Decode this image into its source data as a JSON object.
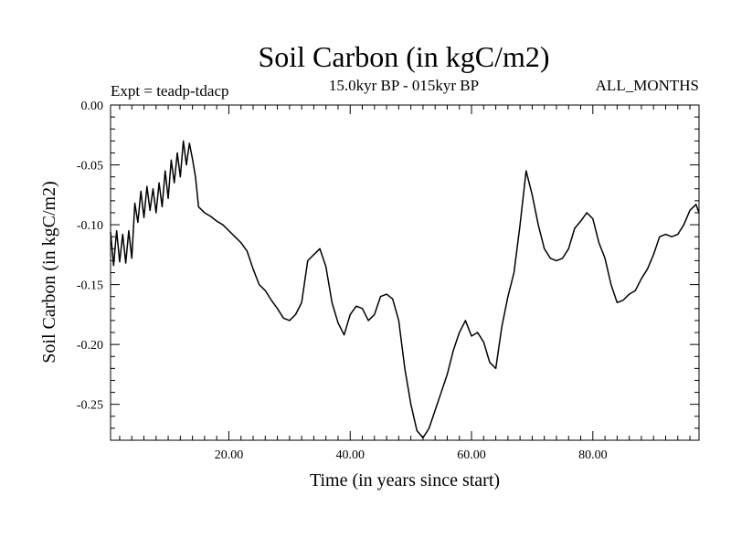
{
  "chart_data": {
    "type": "line",
    "title": "Soil Carbon (in kgC/m2)",
    "subtitle": "15.0kyr BP - 015kyr BP",
    "experiment": "Expt = teadp-tdacp",
    "months": "ALL_MONTHS",
    "xlabel": "Time (in years since start)",
    "ylabel": "Soil Carbon (in kgC/m2)",
    "xlim": [
      0.5,
      97.5
    ],
    "ylim": [
      -0.28,
      0.0
    ],
    "xticks": [
      20,
      40,
      60,
      80
    ],
    "xtick_labels": [
      "20.00",
      "40.00",
      "60.00",
      "80.00"
    ],
    "yticks": [
      0.0,
      -0.05,
      -0.1,
      -0.15,
      -0.2,
      -0.25
    ],
    "ytick_labels": [
      "0.00",
      "-0.05",
      "-0.10",
      "-0.15",
      "-0.20",
      "-0.25"
    ],
    "line_color": "#000000",
    "series": [
      {
        "name": "Soil Carbon",
        "x": [
          0.5,
          1.0,
          1.5,
          2.0,
          2.5,
          3.0,
          3.5,
          4.0,
          4.5,
          5.0,
          5.5,
          6.0,
          6.5,
          7.0,
          7.5,
          8.0,
          8.5,
          9.0,
          9.5,
          10.0,
          10.5,
          11.0,
          11.5,
          12.0,
          12.5,
          13.0,
          13.5,
          14.0,
          14.5,
          15.0,
          16.0,
          17.0,
          18.0,
          19.0,
          20.0,
          21.0,
          22.0,
          23.0,
          24.0,
          25.0,
          26.0,
          27.0,
          28.0,
          29.0,
          30.0,
          31.0,
          32.0,
          33.0,
          34.0,
          35.0,
          36.0,
          37.0,
          38.0,
          39.0,
          40.0,
          41.0,
          42.0,
          43.0,
          44.0,
          45.0,
          46.0,
          47.0,
          48.0,
          49.0,
          50.0,
          51.0,
          52.0,
          53.0,
          54.0,
          55.0,
          56.0,
          57.0,
          58.0,
          59.0,
          60.0,
          61.0,
          62.0,
          63.0,
          64.0,
          65.0,
          66.0,
          67.0,
          68.0,
          69.0,
          70.0,
          71.0,
          72.0,
          73.0,
          74.0,
          75.0,
          76.0,
          77.0,
          78.0,
          79.0,
          80.0,
          81.0,
          82.0,
          83.0,
          84.0,
          85.0,
          86.0,
          87.0,
          88.0,
          89.0,
          90.0,
          91.0,
          92.0,
          93.0,
          94.0,
          95.0,
          96.0,
          97.0,
          97.5
        ],
        "values": [
          -0.106,
          -0.134,
          -0.105,
          -0.131,
          -0.108,
          -0.132,
          -0.105,
          -0.128,
          -0.082,
          -0.098,
          -0.072,
          -0.094,
          -0.068,
          -0.088,
          -0.07,
          -0.09,
          -0.065,
          -0.085,
          -0.055,
          -0.078,
          -0.046,
          -0.065,
          -0.04,
          -0.06,
          -0.03,
          -0.05,
          -0.032,
          -0.045,
          -0.06,
          -0.085,
          -0.09,
          -0.093,
          -0.097,
          -0.1,
          -0.105,
          -0.11,
          -0.115,
          -0.122,
          -0.137,
          -0.15,
          -0.155,
          -0.163,
          -0.17,
          -0.178,
          -0.18,
          -0.175,
          -0.165,
          -0.13,
          -0.125,
          -0.12,
          -0.135,
          -0.165,
          -0.182,
          -0.192,
          -0.175,
          -0.168,
          -0.17,
          -0.18,
          -0.175,
          -0.16,
          -0.158,
          -0.162,
          -0.18,
          -0.22,
          -0.25,
          -0.272,
          -0.278,
          -0.27,
          -0.255,
          -0.24,
          -0.225,
          -0.205,
          -0.19,
          -0.18,
          -0.193,
          -0.19,
          -0.198,
          -0.215,
          -0.22,
          -0.185,
          -0.16,
          -0.14,
          -0.1,
          -0.055,
          -0.075,
          -0.1,
          -0.12,
          -0.128,
          -0.13,
          -0.128,
          -0.12,
          -0.103,
          -0.097,
          -0.09,
          -0.095,
          -0.115,
          -0.128,
          -0.15,
          -0.165,
          -0.163,
          -0.158,
          -0.155,
          -0.145,
          -0.137,
          -0.125,
          -0.11,
          -0.108,
          -0.11,
          -0.108,
          -0.1,
          -0.088,
          -0.083,
          -0.09
        ]
      }
    ]
  }
}
